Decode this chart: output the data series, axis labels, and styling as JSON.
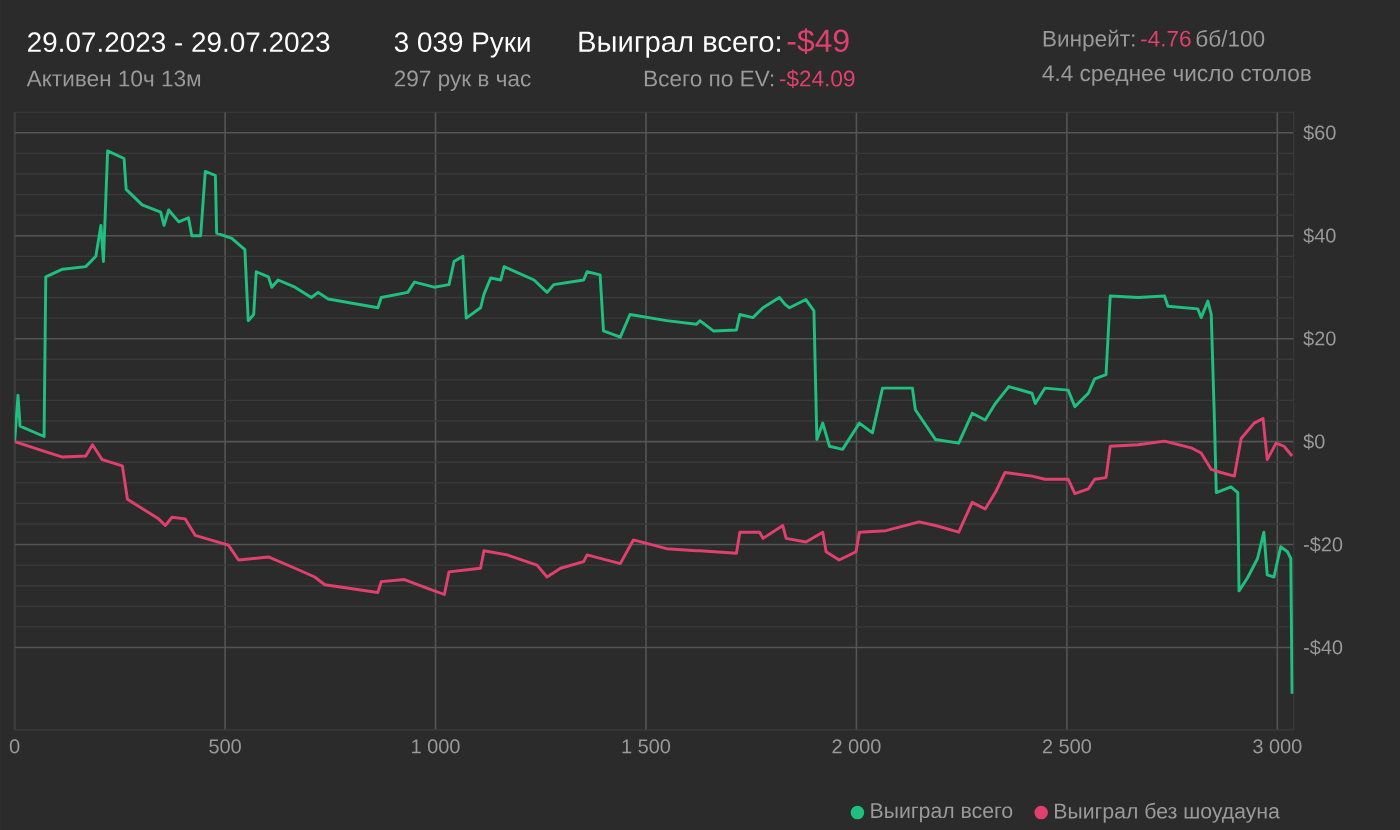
{
  "chart_data": {
    "type": "line",
    "title": "29.07.2023 - 29.07.2023",
    "subtitle": "Активен 10ч 13м",
    "annotations": [
      "3 039 Руки",
      "297 рук в час",
      "Выиграл всего:",
      "-$49",
      "Всего по EV:",
      "-$24.09",
      "Винрейт:",
      "-4.76",
      "бб/100",
      "4.4 среднее число столов"
    ],
    "xlim": [
      0,
      3039
    ],
    "ylim": [
      -56,
      64
    ],
    "xticks": [
      0,
      500,
      {
        "value": 1000,
        "label": "1 000"
      },
      {
        "value": 1500,
        "label": "1 500"
      },
      {
        "value": 2000,
        "label": "2 000"
      },
      {
        "value": 2500,
        "label": "2 500"
      },
      {
        "value": 3000,
        "label": "3 000"
      }
    ],
    "yticks": [
      {
        "value": -40,
        "label": "-$40"
      },
      {
        "value": -20,
        "label": "-$20"
      },
      {
        "value": 0,
        "label": "$0"
      },
      {
        "value": 20,
        "label": "$20"
      },
      {
        "value": 40,
        "label": "$40"
      },
      {
        "value": 60,
        "label": "$60"
      }
    ],
    "grid": true,
    "legend": "bottom right",
    "series": [
      {
        "name": "Выиграл всего",
        "color": "#1fbf7f",
        "x": [
          0,
          8,
          13,
          70,
          74,
          114,
          169,
          193,
          205,
          211,
          221,
          260,
          265,
          303,
          347,
          355,
          366,
          390,
          413,
          421,
          442,
          453,
          477,
          480,
          516,
          547,
          555,
          568,
          574,
          603,
          611,
          626,
          666,
          705,
          721,
          745,
          863,
          871,
          934,
          950,
          997,
          1032,
          1044,
          1065,
          1073,
          1107,
          1115,
          1131,
          1155,
          1163,
          1234,
          1265,
          1281,
          1352,
          1360,
          1391,
          1399,
          1439,
          1462,
          1549,
          1620,
          1628,
          1660,
          1715,
          1723,
          1754,
          1778,
          1817,
          1830,
          1841,
          1880,
          1899,
          1906,
          1920,
          1936,
          1967,
          2007,
          2038,
          2062,
          2133,
          2140,
          2188,
          2243,
          2275,
          2306,
          2330,
          2362,
          2417,
          2425,
          2448,
          2503,
          2519,
          2551,
          2566,
          2593,
          2603,
          2669,
          2732,
          2740,
          2811,
          2819,
          2835,
          2843,
          2851,
          2855,
          2890,
          2906,
          2909,
          2929,
          2953,
          2968,
          2976,
          2992,
          3008,
          3024,
          3032,
          3035
        ],
        "values": [
          0,
          9,
          3,
          1,
          32,
          33.5,
          34,
          36,
          42,
          35,
          56.5,
          55,
          49,
          46,
          44.6,
          42,
          45,
          42.7,
          43.5,
          40,
          40,
          52.5,
          51.7,
          40.5,
          39.5,
          37.3,
          23.5,
          24.7,
          33,
          32,
          30,
          31.4,
          30,
          28,
          29,
          27.7,
          26,
          28,
          29,
          31,
          30,
          30.5,
          35,
          36,
          24,
          26,
          28.6,
          31.8,
          31.4,
          34,
          31.4,
          29,
          30.5,
          31.4,
          33,
          32.4,
          21.5,
          20.3,
          24.7,
          23.5,
          22.8,
          23.5,
          21.5,
          21.7,
          24.7,
          24.1,
          26,
          28,
          26.7,
          26,
          27.6,
          25.4,
          0.4,
          3.6,
          -0.9,
          -1.5,
          3.6,
          1.7,
          10.4,
          10.4,
          6.2,
          0.4,
          -0.3,
          5.5,
          4.2,
          7.4,
          10.7,
          9.4,
          7.4,
          10.4,
          10,
          6.8,
          9.4,
          12.2,
          13,
          28.3,
          28,
          28.3,
          26.3,
          25.8,
          24.1,
          27.3,
          24.7,
          3,
          -9.9,
          -8.8,
          -9.9,
          -29,
          -26.5,
          -22.7,
          -17.6,
          -25.9,
          -26.3,
          -20.4,
          -21.4,
          -22.7,
          -49
        ]
      },
      {
        "name": "Выиграл без шоудауна",
        "color": "#e0406e",
        "x": [
          0,
          82,
          114,
          169,
          185,
          208,
          256,
          268,
          342,
          358,
          374,
          405,
          429,
          508,
          532,
          603,
          666,
          713,
          737,
          863,
          871,
          926,
          981,
          1021,
          1032,
          1107,
          1115,
          1170,
          1241,
          1265,
          1297,
          1352,
          1360,
          1439,
          1470,
          1549,
          1620,
          1628,
          1715,
          1723,
          1770,
          1778,
          1825,
          1833,
          1880,
          1920,
          1928,
          1959,
          1999,
          2007,
          2070,
          2149,
          2188,
          2243,
          2275,
          2306,
          2330,
          2353,
          2417,
          2448,
          2503,
          2519,
          2551,
          2566,
          2593,
          2603,
          2669,
          2732,
          2795,
          2819,
          2843,
          2866,
          2898,
          2914,
          2945,
          2966,
          2976,
          2997,
          3016,
          3035
        ],
        "values": [
          0,
          -2.2,
          -3,
          -2.8,
          -0.6,
          -3.5,
          -4.7,
          -11.2,
          -15,
          -16.3,
          -14.7,
          -15,
          -18.2,
          -20.1,
          -23,
          -22.4,
          -24.6,
          -26.3,
          -27.8,
          -29.3,
          -27.2,
          -26.8,
          -28.5,
          -29.7,
          -25.3,
          -24.6,
          -21.2,
          -22,
          -24,
          -26.3,
          -24.6,
          -23.3,
          -22,
          -23.7,
          -19.1,
          -20.8,
          -21.2,
          -21.2,
          -21.7,
          -17.6,
          -17.6,
          -18.8,
          -16.3,
          -18.8,
          -19.5,
          -17.6,
          -21.4,
          -23,
          -21.4,
          -17.6,
          -17.3,
          -15.6,
          -16.3,
          -17.6,
          -11.8,
          -13.1,
          -9.9,
          -6,
          -6.7,
          -7.3,
          -7.3,
          -10.1,
          -9.2,
          -7.3,
          -7,
          -0.9,
          -0.6,
          0.1,
          -1.2,
          -2.2,
          -5.4,
          -6,
          -6.7,
          0.6,
          3.6,
          4.5,
          -3.5,
          -0.3,
          -0.9,
          -2.8
        ]
      }
    ]
  }
}
